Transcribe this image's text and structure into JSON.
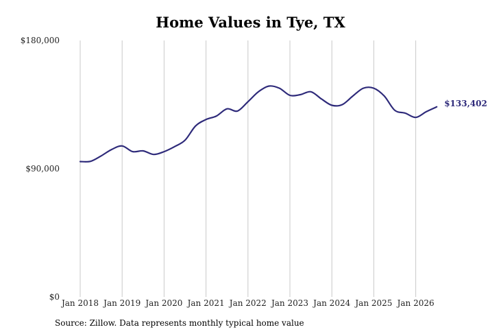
{
  "chart_data": {
    "type": "line",
    "title": "Home Values in Tye, TX",
    "source": "Source: Zillow. Data represents monthly typical home value",
    "ylim": [
      0,
      180000
    ],
    "y_ticks": [
      {
        "value": 0,
        "label": "$0"
      },
      {
        "value": 90000,
        "label": "$90,000"
      },
      {
        "value": 180000,
        "label": "$180,000"
      }
    ],
    "x_ticks": [
      {
        "value": "2018-01",
        "label": "Jan 2018"
      },
      {
        "value": "2019-01",
        "label": "Jan 2019"
      },
      {
        "value": "2020-01",
        "label": "Jan 2020"
      },
      {
        "value": "2021-01",
        "label": "Jan 2021"
      },
      {
        "value": "2022-01",
        "label": "Jan 2022"
      },
      {
        "value": "2023-01",
        "label": "Jan 2023"
      },
      {
        "value": "2024-01",
        "label": "Jan 2024"
      },
      {
        "value": "2025-01",
        "label": "Jan 2025"
      },
      {
        "value": "2026-01",
        "label": "Jan 2026"
      }
    ],
    "grid": "vertical",
    "line_color": "#2e2a7a",
    "end_label": "$133,402",
    "series": [
      {
        "points": [
          [
            "2018-01",
            95000
          ],
          [
            "2018-04",
            95200
          ],
          [
            "2018-07",
            99000
          ],
          [
            "2018-10",
            103500
          ],
          [
            "2019-01",
            106000
          ],
          [
            "2019-04",
            102000
          ],
          [
            "2019-07",
            102500
          ],
          [
            "2019-10",
            100000
          ],
          [
            "2020-01",
            102000
          ],
          [
            "2020-04",
            105500
          ],
          [
            "2020-07",
            110000
          ],
          [
            "2020-10",
            120000
          ],
          [
            "2021-01",
            124500
          ],
          [
            "2021-04",
            127000
          ],
          [
            "2021-07",
            132000
          ],
          [
            "2021-10",
            130500
          ],
          [
            "2022-01",
            137000
          ],
          [
            "2022-04",
            144000
          ],
          [
            "2022-07",
            148000
          ],
          [
            "2022-10",
            146500
          ],
          [
            "2023-01",
            141500
          ],
          [
            "2023-04",
            142000
          ],
          [
            "2023-07",
            144000
          ],
          [
            "2023-10",
            139000
          ],
          [
            "2024-01",
            134500
          ],
          [
            "2024-04",
            135000
          ],
          [
            "2024-07",
            141000
          ],
          [
            "2024-10",
            146500
          ],
          [
            "2025-01",
            146500
          ],
          [
            "2025-04",
            141000
          ],
          [
            "2025-07",
            131000
          ],
          [
            "2025-10",
            129000
          ],
          [
            "2026-01",
            126000
          ],
          [
            "2026-04",
            130000
          ],
          [
            "2026-07",
            133402
          ]
        ]
      }
    ]
  }
}
